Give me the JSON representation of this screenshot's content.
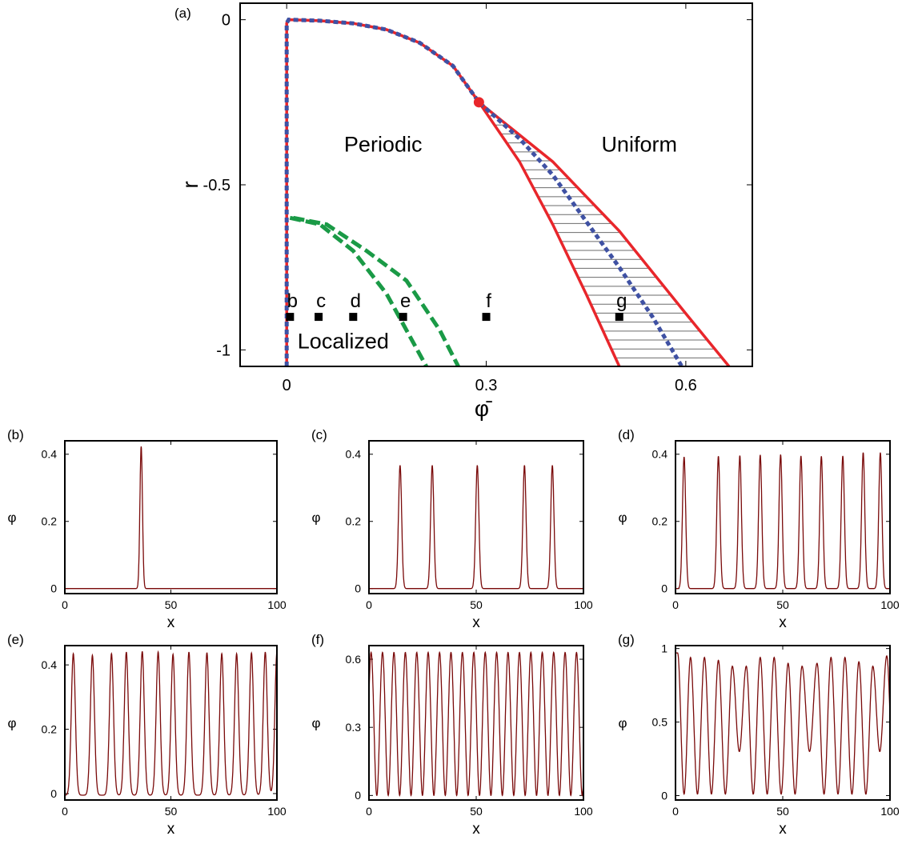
{
  "colors": {
    "red": "#e8262b",
    "blue": "#3f51a3",
    "green": "#1a9a46",
    "trace": "#7a0a0a",
    "hatch": "#6b6b6b",
    "axis": "#000000"
  },
  "chart_data": [
    {
      "panel": "(a)",
      "type": "line",
      "title": "",
      "xlabel": "φ̄",
      "ylabel": "r",
      "xlim": [
        -0.07,
        0.7
      ],
      "ylim": [
        -1.05,
        0.05
      ],
      "xticks": [
        0,
        0.3,
        0.6
      ],
      "xtick_labels": [
        "0",
        "0.3",
        "0.6"
      ],
      "yticks": [
        0,
        -0.5,
        -1
      ],
      "ytick_labels": [
        "0",
        "-0.5",
        "-1"
      ],
      "grid": false,
      "region_labels": [
        {
          "text": "Periodic",
          "x": 0.145,
          "y": -0.4
        },
        {
          "text": "Uniform",
          "x": 0.53,
          "y": -0.4
        },
        {
          "text": "Localized",
          "x": 0.085,
          "y": -0.995
        }
      ],
      "series": [
        {
          "role": "red-solid-left-boundary",
          "x": [
            0,
            0,
            0.003,
            0.05,
            0.1,
            0.15,
            0.2,
            0.25,
            0.289
          ],
          "y": [
            -1.05,
            -0.01,
            0,
            -0.003,
            -0.011,
            -0.03,
            -0.07,
            -0.14,
            -0.25
          ]
        },
        {
          "role": "red-solid-lower-binodal",
          "x": [
            0.289,
            0.35,
            0.4,
            0.45,
            0.5
          ],
          "y": [
            -0.25,
            -0.43,
            -0.62,
            -0.83,
            -1.05
          ]
        },
        {
          "role": "red-solid-upper-binodal",
          "x": [
            0.289,
            0.4,
            0.5,
            0.6,
            0.665
          ],
          "y": [
            -0.25,
            -0.43,
            -0.64,
            -0.89,
            -1.05
          ]
        },
        {
          "role": "blue-dotted-curve",
          "x": [
            0,
            0,
            0.003,
            0.05,
            0.1,
            0.15,
            0.2,
            0.25,
            0.289,
            0.35,
            0.4,
            0.45,
            0.5,
            0.55,
            0.594
          ],
          "y": [
            -1.05,
            -0.01,
            0,
            -0.003,
            -0.011,
            -0.03,
            -0.07,
            -0.14,
            -0.25,
            -0.36,
            -0.47,
            -0.61,
            -0.75,
            -0.9,
            -1.05
          ]
        },
        {
          "role": "green-dashed-inner",
          "x": [
            0.005,
            0.05,
            0.1,
            0.15,
            0.21
          ],
          "y": [
            -0.6,
            -0.62,
            -0.7,
            -0.83,
            -1.05
          ]
        },
        {
          "role": "green-dashed-outer",
          "x": [
            0.01,
            0.06,
            0.12,
            0.18,
            0.23,
            0.258
          ],
          "y": [
            -0.6,
            -0.62,
            -0.7,
            -0.79,
            -0.94,
            -1.05
          ]
        }
      ],
      "critical_point": {
        "x": 0.289,
        "y": -0.25
      },
      "hatched_region": "between-binodals",
      "markers": [
        {
          "label": "b",
          "x": 0.005,
          "y": -0.9
        },
        {
          "label": "c",
          "x": 0.048,
          "y": -0.9
        },
        {
          "label": "d",
          "x": 0.1,
          "y": -0.9
        },
        {
          "label": "e",
          "x": 0.175,
          "y": -0.9
        },
        {
          "label": "f",
          "x": 0.3,
          "y": -0.9
        },
        {
          "label": "g",
          "x": 0.5,
          "y": -0.9
        }
      ]
    },
    {
      "panel": "(b)",
      "type": "line",
      "xlabel": "x",
      "ylabel": "φ",
      "xlim": [
        0,
        100
      ],
      "ylim": [
        -0.015,
        0.44
      ],
      "xticks": [
        0,
        50,
        100
      ],
      "xtick_labels": [
        "0",
        "50",
        "100"
      ],
      "yticks": [
        0,
        0.2,
        0.4
      ],
      "ytick_labels": [
        "0",
        "0.2",
        "0.4"
      ],
      "profile": {
        "mode": "peaks",
        "peaks": [
          36
        ],
        "amps": [
          0.423
        ],
        "width": 0.85,
        "baseline": 0
      }
    },
    {
      "panel": "(c)",
      "type": "line",
      "xlabel": "x",
      "ylabel": "φ",
      "xlim": [
        0,
        100
      ],
      "ylim": [
        -0.015,
        0.44
      ],
      "xticks": [
        0,
        50,
        100
      ],
      "xtick_labels": [
        "0",
        "50",
        "100"
      ],
      "yticks": [
        0,
        0.2,
        0.4
      ],
      "ytick_labels": [
        "0",
        "0.2",
        "0.4"
      ],
      "profile": {
        "mode": "peaks",
        "peaks": [
          14.5,
          29.5,
          50.5,
          72.5,
          85.5
        ],
        "amps": [
          0.367,
          0.367,
          0.367,
          0.367,
          0.367
        ],
        "width": 1.05,
        "baseline": 0
      }
    },
    {
      "panel": "(d)",
      "type": "line",
      "xlabel": "x",
      "ylabel": "φ",
      "xlim": [
        0,
        100
      ],
      "ylim": [
        -0.015,
        0.44
      ],
      "xticks": [
        0,
        50,
        100
      ],
      "xtick_labels": [
        "0",
        "50",
        "100"
      ],
      "yticks": [
        0,
        0.2,
        0.4
      ],
      "ytick_labels": [
        "0",
        "0.2",
        "0.4"
      ],
      "profile": {
        "mode": "peaks",
        "peaks": [
          4,
          20,
          30,
          39.5,
          49,
          58.5,
          68,
          78,
          87.5,
          95.5
        ],
        "amps": [
          0.392,
          0.394,
          0.396,
          0.398,
          0.399,
          0.395,
          0.394,
          0.395,
          0.405,
          0.405
        ],
        "width": 1.05,
        "baseline": 0
      }
    },
    {
      "panel": "(e)",
      "type": "line",
      "xlabel": "x",
      "ylabel": "φ",
      "xlim": [
        0,
        100
      ],
      "ylim": [
        -0.02,
        0.46
      ],
      "xticks": [
        0,
        50,
        100
      ],
      "xtick_labels": [
        "0",
        "50",
        "100"
      ],
      "yticks": [
        0,
        0.2,
        0.4
      ],
      "ytick_labels": [
        "0",
        "0.2",
        "0.4"
      ],
      "profile": {
        "mode": "peaks",
        "peaks": [
          4,
          13,
          22,
          29,
          36.5,
          44,
          51,
          58.5,
          67,
          74,
          81,
          88,
          94.5,
          100
        ],
        "amps": [
          0.44,
          0.435,
          0.44,
          0.445,
          0.447,
          0.445,
          0.438,
          0.445,
          0.443,
          0.44,
          0.44,
          0.442,
          0.445,
          0.445
        ],
        "width": 1.35,
        "baseline": -0.005
      }
    },
    {
      "panel": "(f)",
      "type": "line",
      "xlabel": "x",
      "ylabel": "φ",
      "xlim": [
        0,
        100
      ],
      "ylim": [
        -0.02,
        0.66
      ],
      "xticks": [
        0,
        50,
        100
      ],
      "xtick_labels": [
        "0",
        "50",
        "100"
      ],
      "yticks": [
        0,
        0.3,
        0.6
      ],
      "ytick_labels": [
        "0",
        "0.3",
        "0.6"
      ],
      "profile": {
        "mode": "cos",
        "period": 5.32,
        "phase": 1.0,
        "amp": 0.63
      }
    },
    {
      "panel": "(g)",
      "type": "line",
      "xlabel": "x",
      "ylabel": "φ",
      "xlim": [
        0,
        100
      ],
      "ylim": [
        -0.03,
        1.02
      ],
      "xticks": [
        0,
        50,
        100
      ],
      "xtick_labels": [
        "0",
        "50",
        "100"
      ],
      "yticks": [
        0,
        0.5,
        1
      ],
      "ytick_labels": [
        "0",
        "0.5",
        "1"
      ],
      "profile": {
        "mode": "pairs",
        "peaks": [
          1,
          7,
          13.5,
          20,
          26.5,
          33,
          39.5,
          46,
          52.5,
          59,
          66,
          72.5,
          79,
          85.5,
          92,
          98.5
        ],
        "amps": [
          0.97,
          0.94,
          0.94,
          0.92,
          0.88,
          0.88,
          0.94,
          0.94,
          0.9,
          0.88,
          0.9,
          0.94,
          0.94,
          0.91,
          0.88,
          0.95
        ],
        "troughs": [
          0.01,
          0.01,
          0.01,
          0.01,
          0.3,
          0.01,
          0.01,
          0.01,
          0.01,
          0.3,
          0.01,
          0.01,
          0.01,
          0.01,
          0.3,
          0.01
        ]
      }
    }
  ]
}
